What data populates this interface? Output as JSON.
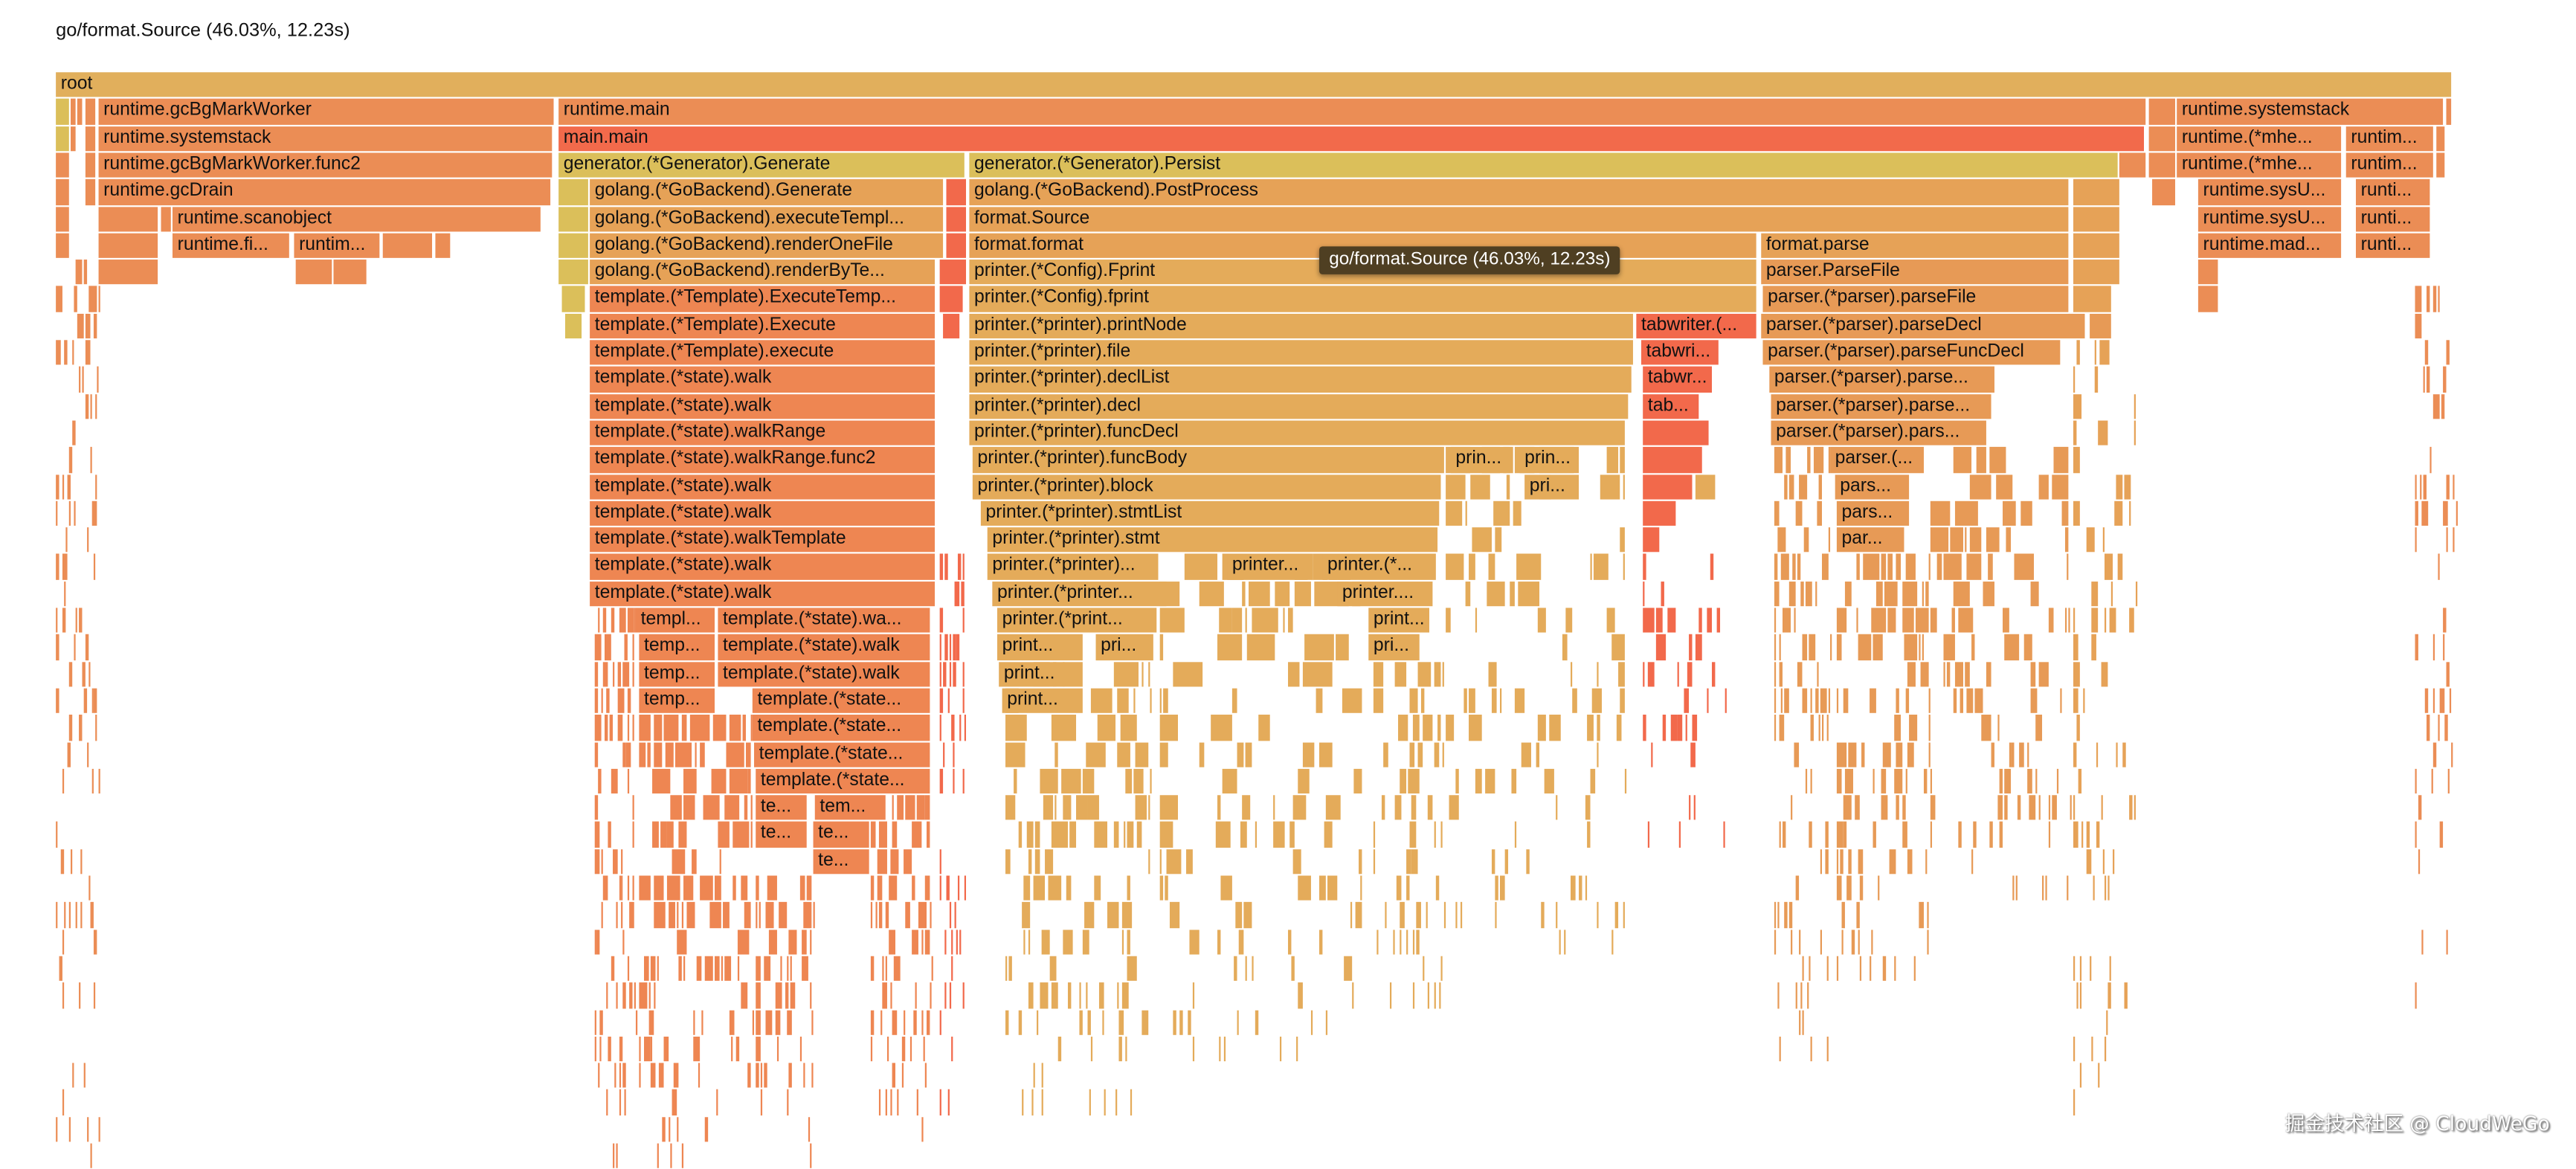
{
  "header": {
    "title": "go/format.Source (46.03%, 12.23s)"
  },
  "tooltip": {
    "text": "go/format.Source (46.03%, 12.23s)",
    "target": "format.Source",
    "percent": 46.03,
    "seconds": 12.23
  },
  "watermark": "掘金技术社区 @ CloudWeGo",
  "colors": {
    "root": "#e1af5c",
    "orange": "#eb8d55",
    "main": "#f26a4b",
    "yellow": "#dbbf5a",
    "printer": "#e4ab5a",
    "template": "#ee8652",
    "parser": "#e79a56",
    "tabwriter": "#f2694b",
    "light": "#e6a257"
  },
  "frames": [
    {
      "label": "root",
      "depth": 0
    },
    {
      "label": "runtime.gcBgMarkWorker",
      "depth": 1
    },
    {
      "label": "runtime.main",
      "depth": 1
    },
    {
      "label": "runtime.systemstack",
      "depth": 1
    },
    {
      "label": "runtime.systemstack",
      "depth": 2
    },
    {
      "label": "main.main",
      "depth": 2
    },
    {
      "label": "runtime.(*mhe...",
      "depth": 2
    },
    {
      "label": "runtim...",
      "depth": 2
    },
    {
      "label": "runtime.gcBgMarkWorker.func2",
      "depth": 3
    },
    {
      "label": "generator.(*Generator).Generate",
      "depth": 3
    },
    {
      "label": "generator.(*Generator).Persist",
      "depth": 3
    },
    {
      "label": "runtime.(*mhe...",
      "depth": 3
    },
    {
      "label": "runtim...",
      "depth": 3
    },
    {
      "label": "runtime.gcDrain",
      "depth": 4
    },
    {
      "label": "golang.(*GoBackend).Generate",
      "depth": 4
    },
    {
      "label": "golang.(*GoBackend).PostProcess",
      "depth": 4
    },
    {
      "label": "runtime.sysU...",
      "depth": 4
    },
    {
      "label": "runti...",
      "depth": 4
    },
    {
      "label": "runtime.scanobject",
      "depth": 5
    },
    {
      "label": "golang.(*GoBackend).executeTempl...",
      "depth": 5
    },
    {
      "label": "format.Source",
      "depth": 5
    },
    {
      "label": "runtime.sysU...",
      "depth": 5
    },
    {
      "label": "runti...",
      "depth": 5
    },
    {
      "label": "runtime.fi...",
      "depth": 6
    },
    {
      "label": "runtim...",
      "depth": 6
    },
    {
      "label": "golang.(*GoBackend).renderOneFile",
      "depth": 6
    },
    {
      "label": "format.format",
      "depth": 6
    },
    {
      "label": "format.parse",
      "depth": 6
    },
    {
      "label": "runtime.mad...",
      "depth": 6
    },
    {
      "label": "runti...",
      "depth": 6
    },
    {
      "label": "golang.(*GoBackend).renderByTe...",
      "depth": 7
    },
    {
      "label": "printer.(*Config).Fprint",
      "depth": 7
    },
    {
      "label": "parser.ParseFile",
      "depth": 7
    },
    {
      "label": "template.(*Template).ExecuteTemp...",
      "depth": 8
    },
    {
      "label": "printer.(*Config).fprint",
      "depth": 8
    },
    {
      "label": "parser.(*parser).parseFile",
      "depth": 8
    },
    {
      "label": "template.(*Template).Execute",
      "depth": 9
    },
    {
      "label": "printer.(*printer).printNode",
      "depth": 9
    },
    {
      "label": "tabwriter.(...",
      "depth": 9
    },
    {
      "label": "parser.(*parser).parseDecl",
      "depth": 9
    },
    {
      "label": "template.(*Template).execute",
      "depth": 10
    },
    {
      "label": "printer.(*printer).file",
      "depth": 10
    },
    {
      "label": "tabwri...",
      "depth": 10
    },
    {
      "label": "parser.(*parser).parseFuncDecl",
      "depth": 10
    },
    {
      "label": "template.(*state).walk",
      "depth": 11
    },
    {
      "label": "printer.(*printer).declList",
      "depth": 11
    },
    {
      "label": "tabwr...",
      "depth": 11
    },
    {
      "label": "parser.(*parser).parse...",
      "depth": 11
    },
    {
      "label": "template.(*state).walk",
      "depth": 12
    },
    {
      "label": "printer.(*printer).decl",
      "depth": 12
    },
    {
      "label": "tab...",
      "depth": 12
    },
    {
      "label": "parser.(*parser).parse...",
      "depth": 12
    },
    {
      "label": "template.(*state).walkRange",
      "depth": 13
    },
    {
      "label": "printer.(*printer).funcDecl",
      "depth": 13
    },
    {
      "label": "parser.(*parser).pars...",
      "depth": 13
    },
    {
      "label": "template.(*state).walkRange.func2",
      "depth": 14
    },
    {
      "label": "printer.(*printer).funcBody",
      "depth": 14
    },
    {
      "label": "prin...",
      "depth": 14
    },
    {
      "label": "prin...",
      "depth": 14
    },
    {
      "label": "parser.(...",
      "depth": 14
    },
    {
      "label": "template.(*state).walk",
      "depth": 15
    },
    {
      "label": "printer.(*printer).block",
      "depth": 15
    },
    {
      "label": "pri...",
      "depth": 15
    },
    {
      "label": "pars...",
      "depth": 15
    },
    {
      "label": "template.(*state).walk",
      "depth": 16
    },
    {
      "label": "printer.(*printer).stmtList",
      "depth": 16
    },
    {
      "label": "pars...",
      "depth": 16
    },
    {
      "label": "template.(*state).walkTemplate",
      "depth": 17
    },
    {
      "label": "printer.(*printer).stmt",
      "depth": 17
    },
    {
      "label": "par...",
      "depth": 17
    },
    {
      "label": "template.(*state).walk",
      "depth": 18
    },
    {
      "label": "printer.(*printer)...",
      "depth": 18
    },
    {
      "label": "printer...",
      "depth": 18
    },
    {
      "label": "printer.(*...",
      "depth": 18
    },
    {
      "label": "template.(*state).walk",
      "depth": 19
    },
    {
      "label": "printer.(*printer...",
      "depth": 19
    },
    {
      "label": "printer....",
      "depth": 19
    },
    {
      "label": "templ...",
      "depth": 20
    },
    {
      "label": "template.(*state).wa...",
      "depth": 20
    },
    {
      "label": "printer.(*print...",
      "depth": 20
    },
    {
      "label": "print...",
      "depth": 20
    },
    {
      "label": "temp...",
      "depth": 21
    },
    {
      "label": "template.(*state).walk",
      "depth": 21
    },
    {
      "label": "print...",
      "depth": 21
    },
    {
      "label": "pri...",
      "depth": 21
    },
    {
      "label": "pri...",
      "depth": 21
    },
    {
      "label": "temp...",
      "depth": 22
    },
    {
      "label": "template.(*state).walk",
      "depth": 22
    },
    {
      "label": "print...",
      "depth": 22
    },
    {
      "label": "temp...",
      "depth": 23
    },
    {
      "label": "template.(*state...",
      "depth": 23
    },
    {
      "label": "print...",
      "depth": 23
    },
    {
      "label": "template.(*state...",
      "depth": 24
    },
    {
      "label": "template.(*state...",
      "depth": 25
    },
    {
      "label": "template.(*state...",
      "depth": 26
    },
    {
      "label": "te...",
      "depth": 27
    },
    {
      "label": "tem...",
      "depth": 27
    },
    {
      "label": "te...",
      "depth": 28
    },
    {
      "label": "te...",
      "depth": 28
    },
    {
      "label": "te...",
      "depth": 29
    }
  ]
}
